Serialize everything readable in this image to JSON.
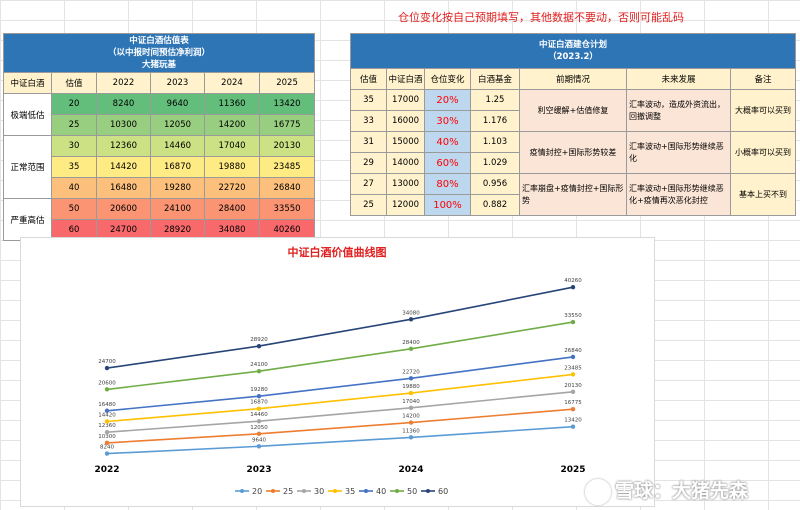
{
  "notice": "仓位变化按自己预期填写，其他数据不要动，否则可能乱码",
  "valuation": {
    "title": [
      "中证白酒估值表",
      "（以中报时间预估净利润）",
      "大猪玩基"
    ],
    "headers": [
      "中证白酒",
      "估值",
      "2022",
      "2023",
      "2024",
      "2025"
    ],
    "groups": [
      "极端低估",
      "正常范围",
      "严重高估"
    ],
    "rows": [
      {
        "pe": "20",
        "v2022": "8240",
        "v2023": "9640",
        "v2024": "11360",
        "v2025": "13420",
        "color": "#63be7b"
      },
      {
        "pe": "25",
        "v2022": "10300",
        "v2023": "12050",
        "v2024": "14200",
        "v2025": "16775",
        "color": "#98ce7f"
      },
      {
        "pe": "30",
        "v2022": "12360",
        "v2023": "14460",
        "v2024": "17040",
        "v2025": "20130",
        "color": "#cce183"
      },
      {
        "pe": "35",
        "v2022": "14420",
        "v2023": "16870",
        "v2024": "19880",
        "v2025": "23485",
        "color": "#ffeb84"
      },
      {
        "pe": "40",
        "v2022": "16480",
        "v2023": "19280",
        "v2024": "22720",
        "v2025": "26840",
        "color": "#fdc07c"
      },
      {
        "pe": "50",
        "v2022": "20600",
        "v2023": "24100",
        "v2024": "28400",
        "v2025": "33550",
        "color": "#fa9473"
      },
      {
        "pe": "60",
        "v2022": "24700",
        "v2023": "28920",
        "v2024": "34080",
        "v2025": "40260",
        "color": "#f8696b"
      }
    ]
  },
  "plan": {
    "title": [
      "中证白酒建仓计划",
      "（2023.2）"
    ],
    "headers": [
      "估值",
      "中证白酒",
      "仓位变化",
      "白酒基金",
      "前期情况",
      "未来发展",
      "备注"
    ],
    "rows": [
      {
        "pe": "35",
        "index": "17000",
        "pos": "20%",
        "fund": "1.25"
      },
      {
        "pe": "33",
        "index": "16000",
        "pos": "30%",
        "fund": "1.176"
      },
      {
        "pe": "31",
        "index": "15000",
        "pos": "40%",
        "fund": "1.103"
      },
      {
        "pe": "29",
        "index": "14000",
        "pos": "60%",
        "fund": "1.029"
      },
      {
        "pe": "27",
        "index": "13000",
        "pos": "80%",
        "fund": "0.956"
      },
      {
        "pe": "25",
        "index": "12000",
        "pos": "100%",
        "fund": "0.882"
      }
    ],
    "early": [
      "利空缓解+估值修复",
      "疫情封控+国际形势较差",
      "汇率崩盘+疫情封控+国际形势"
    ],
    "future": [
      "汇率波动，造成外资流出，回撤调整",
      "汇率波动+国际形势继续恶化",
      "汇率波动+国际形势继续恶化+疫情再次恶化封控"
    ],
    "remarks": [
      "大概率可以买到",
      "小概率可以买到",
      "基本上买不到"
    ]
  },
  "chart_data": {
    "type": "line",
    "title": "中证白酒价值曲线图",
    "categories": [
      "2022",
      "2023",
      "2024",
      "2025"
    ],
    "ylim": [
      7000,
      43000
    ],
    "legend": "bottom",
    "grid": false,
    "series": [
      {
        "name": "20",
        "values": [
          8240,
          9640,
          11360,
          13420
        ],
        "color": "#5b9bd5"
      },
      {
        "name": "25",
        "values": [
          10300,
          12050,
          14200,
          16775
        ],
        "color": "#ed7d31"
      },
      {
        "name": "30",
        "values": [
          12360,
          14460,
          17040,
          20130
        ],
        "color": "#a5a5a5"
      },
      {
        "name": "35",
        "values": [
          14420,
          16870,
          19880,
          23485
        ],
        "color": "#ffc000"
      },
      {
        "name": "40",
        "values": [
          16480,
          19280,
          22720,
          26840
        ],
        "color": "#4472c4"
      },
      {
        "name": "50",
        "values": [
          20600,
          24100,
          28400,
          33550
        ],
        "color": "#70ad47"
      },
      {
        "name": "60",
        "values": [
          24700,
          28920,
          34080,
          40260
        ],
        "color": "#264478"
      }
    ]
  },
  "watermark": "雪球：大猪先森"
}
